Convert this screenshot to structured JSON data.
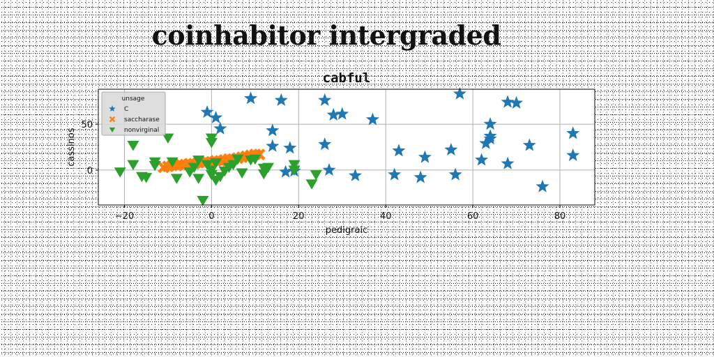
{
  "figure": {
    "suptitle": "coinhabitor intergraded"
  },
  "chart_data": {
    "type": "scatter",
    "title": "cabful",
    "xlabel": "pedigraic",
    "ylabel": "cassinos",
    "xlim": [
      -26,
      88
    ],
    "ylim": [
      -38,
      88
    ],
    "xticks": [
      -20,
      0,
      20,
      40,
      60,
      80
    ],
    "yticks": [
      0,
      50
    ],
    "grid": true,
    "legend": {
      "title": "unsage",
      "placement": "top-left"
    },
    "series": [
      {
        "name": "C",
        "marker": "star",
        "color": "#1f77b4",
        "points": [
          [
            -1,
            63
          ],
          [
            1,
            57
          ],
          [
            2,
            45
          ],
          [
            9,
            78
          ],
          [
            16,
            76
          ],
          [
            14,
            43
          ],
          [
            14,
            26
          ],
          [
            18,
            24
          ],
          [
            17,
            -2
          ],
          [
            19,
            -1
          ],
          [
            26,
            76
          ],
          [
            28,
            60
          ],
          [
            30,
            61
          ],
          [
            26,
            28
          ],
          [
            27,
            0
          ],
          [
            33,
            -6
          ],
          [
            37,
            55
          ],
          [
            42,
            -5
          ],
          [
            43,
            21
          ],
          [
            48,
            -8
          ],
          [
            49,
            14
          ],
          [
            55,
            22
          ],
          [
            56,
            -5
          ],
          [
            57,
            83
          ],
          [
            62,
            11
          ],
          [
            63,
            29
          ],
          [
            64,
            34
          ],
          [
            64,
            37
          ],
          [
            64,
            50
          ],
          [
            68,
            74
          ],
          [
            70,
            73
          ],
          [
            68,
            7
          ],
          [
            73,
            27
          ],
          [
            76,
            -18
          ],
          [
            83,
            40
          ],
          [
            83,
            16
          ]
        ]
      },
      {
        "name": "saccharase",
        "marker": "x",
        "color": "#ff7f0e",
        "points": [
          [
            -11,
            3
          ],
          [
            -10,
            4
          ],
          [
            -9,
            5
          ],
          [
            -8,
            5
          ],
          [
            -7,
            6
          ],
          [
            -6,
            6
          ],
          [
            -5,
            7
          ],
          [
            -4,
            7
          ],
          [
            -3,
            8
          ],
          [
            -2,
            8
          ],
          [
            -1,
            9
          ],
          [
            0,
            9
          ],
          [
            1,
            10
          ],
          [
            2,
            10
          ],
          [
            3,
            11
          ],
          [
            4,
            12
          ],
          [
            5,
            12
          ],
          [
            6,
            13
          ],
          [
            7,
            14
          ],
          [
            8,
            15
          ],
          [
            9,
            16
          ],
          [
            10,
            17
          ],
          [
            11,
            17
          ]
        ]
      },
      {
        "name": "nonvirginal",
        "marker": "triangle-down",
        "color": "#2ca02c",
        "points": [
          [
            -21,
            -2
          ],
          [
            -18,
            27
          ],
          [
            -18,
            6
          ],
          [
            -16,
            -7
          ],
          [
            -15,
            -8
          ],
          [
            -13,
            5
          ],
          [
            -13,
            9
          ],
          [
            -10,
            35
          ],
          [
            -9,
            9
          ],
          [
            -8,
            -9
          ],
          [
            -5,
            -2
          ],
          [
            -4,
            3
          ],
          [
            -3,
            -9
          ],
          [
            -3,
            11
          ],
          [
            -2,
            -33
          ],
          [
            -1,
            6
          ],
          [
            0,
            30
          ],
          [
            0,
            35
          ],
          [
            0,
            0
          ],
          [
            0,
            -5
          ],
          [
            1,
            8
          ],
          [
            1,
            -11
          ],
          [
            2,
            -7
          ],
          [
            3,
            -1
          ],
          [
            4,
            3
          ],
          [
            5,
            6
          ],
          [
            6,
            12
          ],
          [
            7,
            -3
          ],
          [
            9,
            11
          ],
          [
            10,
            12
          ],
          [
            12,
            2
          ],
          [
            12,
            -4
          ],
          [
            13,
            3
          ],
          [
            19,
            6
          ],
          [
            19,
            0
          ],
          [
            23,
            -15
          ],
          [
            24,
            -5
          ]
        ]
      }
    ]
  }
}
